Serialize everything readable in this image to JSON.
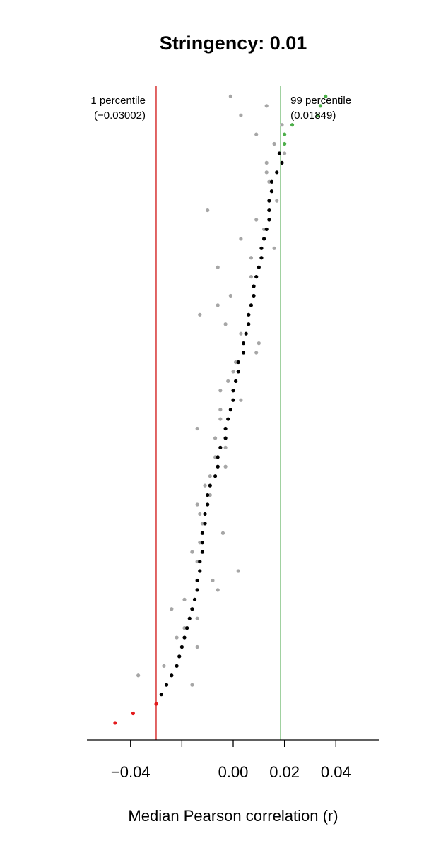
{
  "chart_data": {
    "type": "scatter",
    "title": "Stringency: 0.01",
    "xlabel": "Median Pearson correlation (r)",
    "ylabel": "",
    "xlim": [
      -0.057,
      0.057
    ],
    "x_ticks": [
      -0.04,
      -0.02,
      0.0,
      0.02,
      0.04
    ],
    "x_tick_labels": [
      "−0.04",
      "",
      "0.00",
      "0.02",
      "0.04"
    ],
    "n_rows": 66,
    "grid": false,
    "lower_threshold": {
      "value": -0.03002,
      "label": "1 percentile",
      "value_label": "(−0.03002)",
      "color": "#cc0000"
    },
    "upper_threshold": {
      "value": 0.01849,
      "label": "99 percentile",
      "value_label": "(0.01849)",
      "color": "#2e9a2e"
    },
    "series": [
      {
        "role": "observed",
        "color": "#a6a6a6",
        "points": [
          [
            -0.001,
            1
          ],
          [
            0.013,
            2
          ],
          [
            0.003,
            3
          ],
          [
            0.019,
            4
          ],
          [
            0.009,
            5
          ],
          [
            0.016,
            6
          ],
          [
            0.02,
            7
          ],
          [
            0.013,
            8
          ],
          [
            0.013,
            9
          ],
          [
            0.014,
            10
          ],
          [
            0.015,
            11
          ],
          [
            0.017,
            12
          ],
          [
            -0.01,
            13
          ],
          [
            0.009,
            14
          ],
          [
            0.012,
            15
          ],
          [
            0.003,
            16
          ],
          [
            0.016,
            17
          ],
          [
            0.007,
            18
          ],
          [
            -0.006,
            19
          ],
          [
            0.007,
            20
          ],
          [
            0.008,
            21
          ],
          [
            -0.001,
            22
          ],
          [
            -0.006,
            23
          ],
          [
            -0.013,
            24
          ],
          [
            -0.003,
            25
          ],
          [
            0.003,
            26
          ],
          [
            0.01,
            27
          ],
          [
            0.009,
            28
          ],
          [
            0.001,
            29
          ],
          [
            0.0,
            30
          ],
          [
            -0.002,
            31
          ],
          [
            -0.005,
            32
          ],
          [
            0.003,
            33
          ],
          [
            -0.005,
            34
          ],
          [
            -0.005,
            35
          ],
          [
            -0.014,
            36
          ],
          [
            -0.007,
            37
          ],
          [
            -0.003,
            38
          ],
          [
            -0.007,
            39
          ],
          [
            -0.003,
            40
          ],
          [
            -0.009,
            41
          ],
          [
            -0.011,
            42
          ],
          [
            -0.009,
            43
          ],
          [
            -0.014,
            44
          ],
          [
            -0.013,
            45
          ],
          [
            -0.012,
            46
          ],
          [
            -0.004,
            47
          ],
          [
            -0.013,
            48
          ],
          [
            -0.016,
            49
          ],
          [
            -0.014,
            50
          ],
          [
            0.002,
            51
          ],
          [
            -0.008,
            52
          ],
          [
            -0.006,
            53
          ],
          [
            -0.019,
            54
          ],
          [
            -0.024,
            55
          ],
          [
            -0.014,
            56
          ],
          [
            -0.019,
            57
          ],
          [
            -0.022,
            58
          ],
          [
            -0.014,
            59
          ],
          [
            -0.021,
            60
          ],
          [
            -0.027,
            61
          ],
          [
            -0.037,
            62
          ],
          [
            -0.016,
            63
          ]
        ]
      },
      {
        "role": "expected",
        "color": "#000000",
        "points": [
          [
            0.018,
            7
          ],
          [
            0.019,
            8
          ],
          [
            0.017,
            9
          ],
          [
            0.015,
            10
          ],
          [
            0.015,
            11
          ],
          [
            0.014,
            12
          ],
          [
            0.014,
            13
          ],
          [
            0.014,
            14
          ],
          [
            0.013,
            15
          ],
          [
            0.012,
            16
          ],
          [
            0.011,
            17
          ],
          [
            0.011,
            18
          ],
          [
            0.01,
            19
          ],
          [
            0.009,
            20
          ],
          [
            0.008,
            21
          ],
          [
            0.008,
            22
          ],
          [
            0.007,
            23
          ],
          [
            0.006,
            24
          ],
          [
            0.006,
            25
          ],
          [
            0.005,
            26
          ],
          [
            0.004,
            27
          ],
          [
            0.004,
            28
          ],
          [
            0.002,
            29
          ],
          [
            0.002,
            30
          ],
          [
            0.001,
            31
          ],
          [
            0.0,
            32
          ],
          [
            0.0,
            33
          ],
          [
            -0.001,
            34
          ],
          [
            -0.002,
            35
          ],
          [
            -0.003,
            36
          ],
          [
            -0.003,
            37
          ],
          [
            -0.005,
            38
          ],
          [
            -0.006,
            39
          ],
          [
            -0.006,
            40
          ],
          [
            -0.007,
            41
          ],
          [
            -0.009,
            42
          ],
          [
            -0.01,
            43
          ],
          [
            -0.01,
            44
          ],
          [
            -0.011,
            45
          ],
          [
            -0.011,
            46
          ],
          [
            -0.012,
            47
          ],
          [
            -0.012,
            48
          ],
          [
            -0.012,
            49
          ],
          [
            -0.013,
            50
          ],
          [
            -0.013,
            51
          ],
          [
            -0.014,
            52
          ],
          [
            -0.014,
            53
          ],
          [
            -0.015,
            54
          ],
          [
            -0.016,
            55
          ],
          [
            -0.017,
            56
          ],
          [
            -0.018,
            57
          ],
          [
            -0.019,
            58
          ],
          [
            -0.02,
            59
          ],
          [
            -0.021,
            60
          ],
          [
            -0.022,
            61
          ],
          [
            -0.024,
            62
          ],
          [
            -0.026,
            63
          ],
          [
            -0.028,
            64
          ]
        ]
      },
      {
        "role": "above_upper",
        "color": "#4daf4a",
        "points": [
          [
            0.036,
            1
          ],
          [
            0.034,
            2
          ],
          [
            0.033,
            3
          ],
          [
            0.023,
            4
          ],
          [
            0.02,
            5
          ],
          [
            0.02,
            6
          ]
        ]
      },
      {
        "role": "below_lower",
        "color": "#e31a1c",
        "points": [
          [
            -0.03,
            65
          ],
          [
            -0.039,
            66
          ],
          [
            -0.046,
            67
          ]
        ]
      }
    ]
  }
}
